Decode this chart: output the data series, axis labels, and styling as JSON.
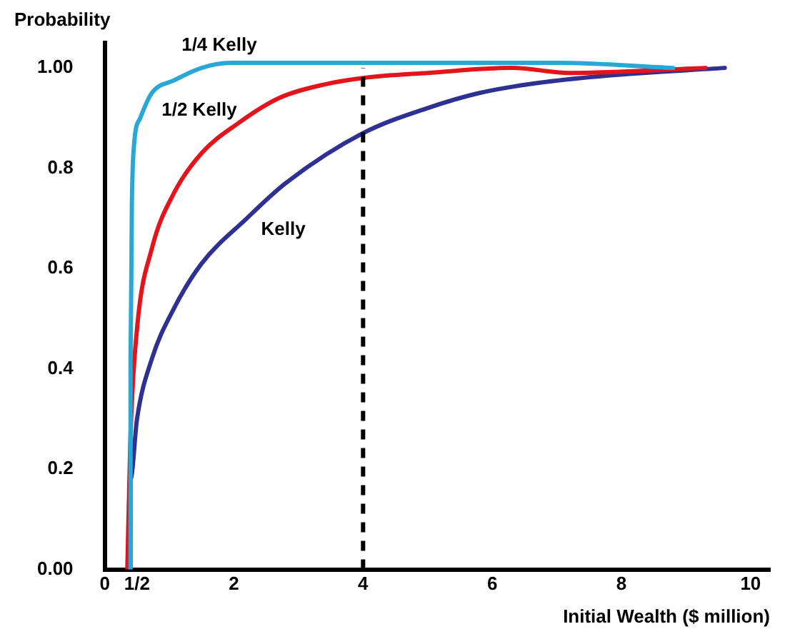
{
  "chart_data": {
    "type": "line",
    "xlabel": "Initial Wealth ($ million)",
    "ylabel": "Probability",
    "xlim": [
      0,
      10.3
    ],
    "xticks": [
      0,
      {
        "value": 0.5,
        "label": "1/2"
      },
      2,
      4,
      6,
      8,
      10
    ],
    "ylim": [
      0,
      1.05
    ],
    "yticks": [
      {
        "value": 0,
        "label": "0.00"
      },
      0.2,
      0.4,
      0.6,
      0.8,
      {
        "value": 1,
        "label": "1.00"
      }
    ],
    "grid": false,
    "legend": false,
    "marker": "none",
    "line_style": "solid",
    "ref_lines": [
      {
        "axis": "x",
        "value": 4,
        "color": "#000000",
        "line_style": "dashed"
      }
    ],
    "series": [
      {
        "name": "1/4 Kelly",
        "color": "#29a8d6",
        "x": [
          0.4,
          0.4,
          0.42,
          0.45,
          0.55,
          0.73,
          1.07,
          1.5,
          1.95,
          3,
          5,
          7,
          8.8
        ],
        "values": [
          0,
          0.42,
          0.72,
          0.84,
          0.9,
          0.95,
          0.975,
          1.0,
          1.01,
          1.01,
          1.01,
          1.01,
          1.0
        ]
      },
      {
        "name": "1/2 Kelly",
        "color": "#e3141b",
        "x": [
          0.35,
          0.4,
          0.5,
          0.73,
          1.07,
          1.5,
          2.07,
          2.7,
          3.4,
          4,
          5,
          6.3,
          7.2,
          9.3
        ],
        "values": [
          0,
          0.27,
          0.48,
          0.64,
          0.75,
          0.83,
          0.89,
          0.94,
          0.967,
          0.98,
          0.99,
          1.0,
          0.99,
          1.0
        ]
      },
      {
        "name": "Kelly",
        "color": "#2e3192",
        "x": [
          0.4,
          0.4,
          0.5,
          0.73,
          1.07,
          1.5,
          2.2,
          2.8,
          4,
          5,
          5.8,
          6.7,
          7.8,
          9.6
        ],
        "values": [
          0,
          0.18,
          0.3,
          0.42,
          0.52,
          0.61,
          0.7,
          0.77,
          0.87,
          0.92,
          0.95,
          0.97,
          0.985,
          1.0
        ]
      }
    ]
  }
}
